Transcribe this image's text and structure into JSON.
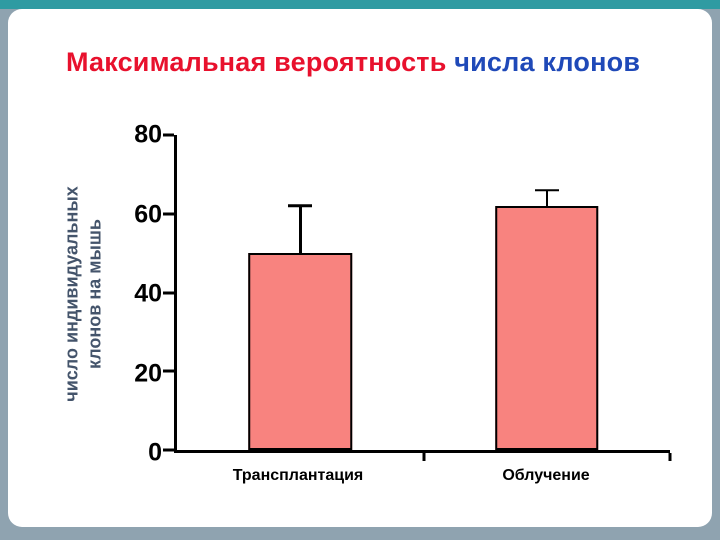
{
  "slide": {
    "title_part1": "Максимальная вероятность",
    "title_part2": "числа клонов",
    "colors": {
      "title1": "#e8112d",
      "title2": "#1f49b8",
      "bar": "#f8837f",
      "frame": "#8fa3b0",
      "topbar": "#2f9ba2",
      "ylabel": "#44546b"
    }
  },
  "chart_data": {
    "type": "bar",
    "title": "Максимальная вероятность числа клонов",
    "categories": [
      "Трансплантация",
      "Облучение"
    ],
    "values": [
      50,
      62
    ],
    "errors_plus": [
      12,
      4
    ],
    "ylabel": "число индивидуальных клонов на мышь",
    "ylabel_lines": [
      "число индивидуальных",
      "клонов на мышь"
    ],
    "xlabel": "",
    "ylim": [
      0,
      80
    ],
    "yticks": [
      0,
      20,
      40,
      60,
      80
    ],
    "grid": false,
    "legend": false,
    "bar_border_color": "#000000",
    "axis_color": "#000000"
  }
}
